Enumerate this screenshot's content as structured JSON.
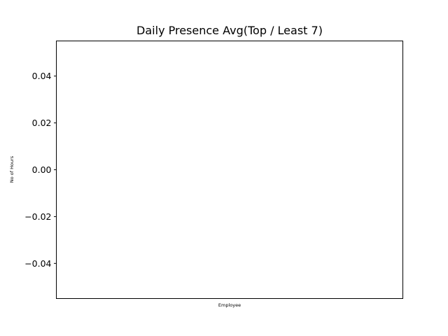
{
  "chart_data": {
    "type": "bar",
    "title": "Daily Presence Avg(Top / Least 7)",
    "xlabel": "Employee",
    "ylabel": "No of Hours",
    "categories": [],
    "values": [],
    "ylim": [
      -0.055,
      0.055
    ],
    "yticks": [
      "0.04",
      "0.02",
      "0.00",
      "−0.02",
      "−0.04"
    ],
    "ytick_values": [
      0.04,
      0.02,
      0.0,
      -0.02,
      -0.04
    ],
    "grid": false
  }
}
